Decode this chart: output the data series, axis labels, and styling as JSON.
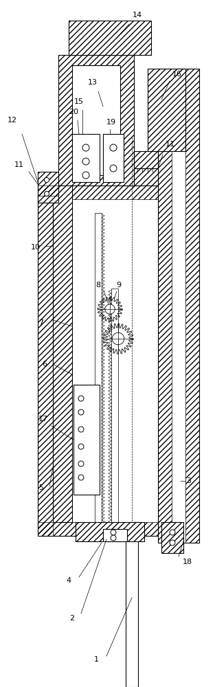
{
  "bg_color": "#ffffff",
  "lc": "#000000",
  "lw": 0.8,
  "fig_width": 3.13,
  "fig_height": 10.0,
  "dpi": 100
}
